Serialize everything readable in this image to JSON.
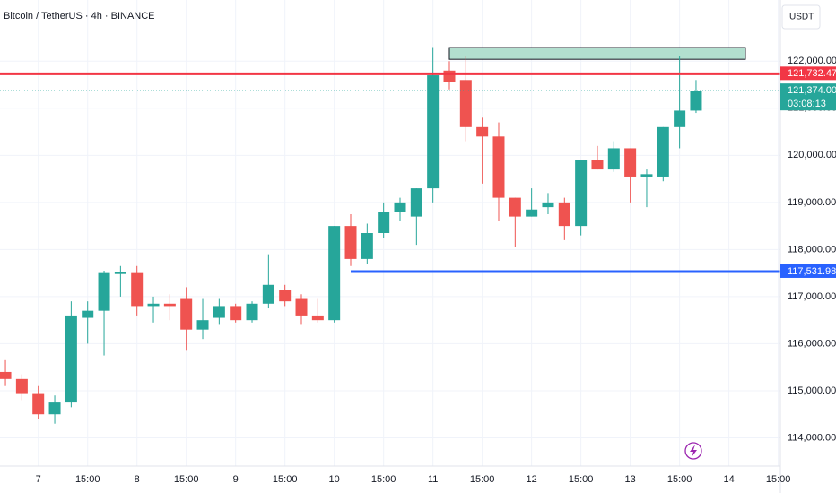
{
  "chart_data": {
    "type": "candlestick",
    "title": "Bitcoin / TetherUS · 4h · BINANCE",
    "currency": "USDT",
    "up_color": "#26a69a",
    "down_color": "#ef5350",
    "open": [
      115400,
      115250,
      114950,
      114500,
      114750,
      116550,
      116700,
      117480,
      117500,
      116800,
      116850,
      116950,
      116300,
      116550,
      116800,
      116500,
      116850,
      117150,
      116950,
      116600,
      116500,
      118500,
      117800,
      118350,
      118800,
      118700,
      119300,
      121800,
      121600,
      120600,
      120400,
      119100,
      118700,
      118900,
      119000,
      118500,
      119900,
      119700,
      120150,
      119550,
      119550,
      120600,
      120950
    ],
    "high": [
      115650,
      115350,
      115100,
      114900,
      116900,
      116900,
      117550,
      117650,
      117650,
      117000,
      117050,
      117200,
      116950,
      116950,
      116850,
      116900,
      117900,
      117250,
      117050,
      116950,
      118500,
      118750,
      118550,
      119000,
      119100,
      119300,
      122300,
      122000,
      122100,
      120800,
      120700,
      119100,
      119300,
      119200,
      119100,
      119900,
      120200,
      120300,
      120150,
      119700,
      120600,
      122100,
      121600
    ],
    "low": [
      115100,
      114800,
      114400,
      114300,
      114650,
      116000,
      115750,
      117000,
      116600,
      116450,
      116500,
      115850,
      116100,
      116400,
      116450,
      116450,
      116750,
      116800,
      116400,
      116450,
      116450,
      117650,
      117700,
      118250,
      118600,
      118100,
      119000,
      121400,
      120300,
      119400,
      118600,
      118050,
      118700,
      118750,
      118200,
      118300,
      119700,
      119650,
      119000,
      118900,
      119450,
      120150,
      120900
    ],
    "close": [
      115250,
      114950,
      114500,
      114750,
      116600,
      116700,
      117500,
      117520,
      116800,
      116850,
      116800,
      116300,
      116500,
      116800,
      116500,
      116850,
      117250,
      116900,
      116600,
      116500,
      118500,
      117800,
      118350,
      118800,
      119000,
      119300,
      121700,
      121550,
      120600,
      120400,
      119100,
      118700,
      118850,
      119000,
      118500,
      119900,
      119700,
      120150,
      119550,
      119600,
      120600,
      120950,
      121374
    ],
    "xlim": [
      -0.33,
      47.13
    ],
    "xticks": [
      {
        "value": 2,
        "label": "7"
      },
      {
        "value": 5,
        "label": "15:00"
      },
      {
        "value": 8,
        "label": "8"
      },
      {
        "value": 11,
        "label": "15:00"
      },
      {
        "value": 14,
        "label": "9"
      },
      {
        "value": 17,
        "label": "15:00"
      },
      {
        "value": 20,
        "label": "10"
      },
      {
        "value": 23,
        "label": "15:00"
      },
      {
        "value": 26,
        "label": "11"
      },
      {
        "value": 29,
        "label": "15:00"
      },
      {
        "value": 32,
        "label": "12"
      },
      {
        "value": 35,
        "label": "15:00"
      },
      {
        "value": 38,
        "label": "13"
      },
      {
        "value": 41,
        "label": "15:00"
      },
      {
        "value": 44,
        "label": "14"
      },
      {
        "value": 47,
        "label": "15:00"
      }
    ],
    "ylim": [
      113400,
      123300
    ],
    "yticks": [
      {
        "value": 114000,
        "label": "114,000.00"
      },
      {
        "value": 115000,
        "label": "115,000.00"
      },
      {
        "value": 116000,
        "label": "116,000.00"
      },
      {
        "value": 117000,
        "label": "117,000.00"
      },
      {
        "value": 118000,
        "label": "118,000.00"
      },
      {
        "value": 119000,
        "label": "119,000.00"
      },
      {
        "value": 120000,
        "label": "120,000.00"
      },
      {
        "value": 121000,
        "label": "121,000.00"
      },
      {
        "value": 122000,
        "label": "122,000.00"
      }
    ],
    "grid": true,
    "levels": [
      {
        "price": {
          "value": 121732.47,
          "label": "121,732.47"
        },
        "color": "#f23645",
        "style": "solid",
        "x_start": -0.33
      },
      {
        "price": {
          "value": 117531.98,
          "label": "117,531.98"
        },
        "color": "#2962ff",
        "style": "solid",
        "x_start": 21
      },
      {
        "price": {
          "value": 121374,
          "label": "121,374.00"
        },
        "color": "#26a69a",
        "style": "dotted",
        "x_start": -0.33,
        "countdown": "03:08:13"
      }
    ],
    "zone": {
      "x": [
        27,
        45
      ],
      "y": [
        122040,
        122290
      ],
      "color": "#b2dfcf"
    }
  }
}
